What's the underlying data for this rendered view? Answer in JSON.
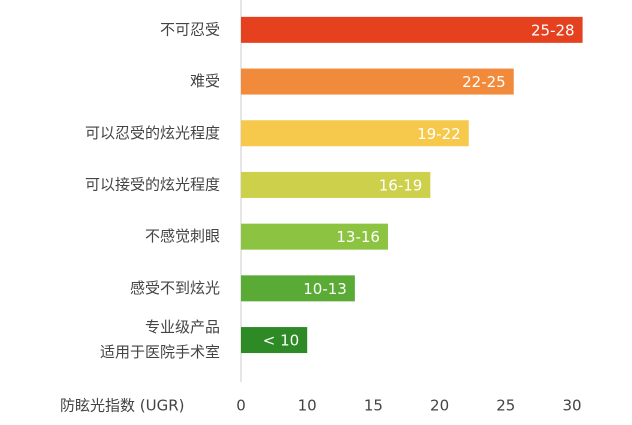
{
  "chart_data": {
    "type": "hbar",
    "categories": [
      "不可忍受",
      "难受",
      "可以忍受的炫光程度",
      "可以接受的炫光程度",
      "不感觉刺眼",
      "感受不到炫光",
      [
        "专业级产品",
        "适用于医院手术室"
      ]
    ],
    "values": [
      30.8,
      25.6,
      22.2,
      19.3,
      16.1,
      13.6,
      10
    ],
    "value_labels": [
      "25-28",
      "22-25",
      "19-22",
      "16-19",
      "13-16",
      "10-13",
      "< 10"
    ],
    "colors": [
      "#e5411f",
      "#f28a3c",
      "#f6c84c",
      "#cdd04a",
      "#8cc341",
      "#5aaa36",
      "#2e8a24"
    ],
    "x_label": "防眩光指数 (UGR)",
    "xlim": [
      0,
      30
    ],
    "xticks": [
      0,
      10,
      15,
      20,
      25,
      30
    ]
  }
}
